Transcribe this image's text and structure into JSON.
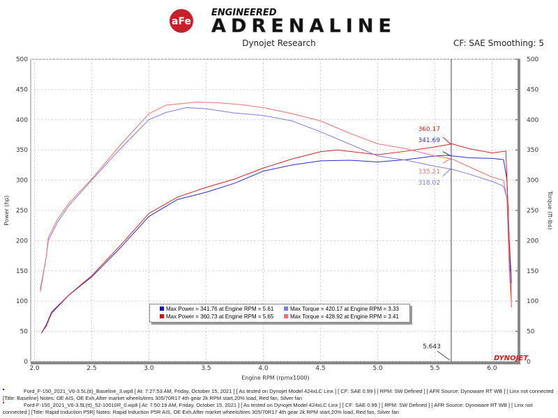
{
  "header": {
    "logo_text": "aFe POWER",
    "logo_line1": "ENGINEERED",
    "logo_line2": "ADRENALINE",
    "subtitle": "Dynojet Research",
    "settings": "CF: SAE Smoothing: 5"
  },
  "chart_data": {
    "type": "line",
    "xlabel": "Engine RPM (rpmx1000)",
    "ylabel": "Power (hp)",
    "y2label": "Torque (ft-lbs)",
    "xlim": [
      1.9,
      6.2
    ],
    "ylim": [
      0,
      500
    ],
    "y2lim": [
      0,
      500
    ],
    "xticks": [
      "2.0",
      "2.5",
      "3.0",
      "3.5",
      "4.0",
      "4.5",
      "5.0",
      "5.5",
      "6.0"
    ],
    "yticks": [
      "0",
      "50",
      "100",
      "150",
      "200",
      "250",
      "300",
      "350",
      "400",
      "450",
      "500"
    ],
    "grid": true,
    "colors": {
      "baseline_power": "#2b2bd0",
      "p5r_power": "#d42020",
      "baseline_torque": "#7b7bea",
      "p5r_torque": "#ee7070"
    },
    "series": [
      {
        "key": "baseline_power",
        "x": [
          2.06,
          2.1,
          2.15,
          2.3,
          2.5,
          2.75,
          3.0,
          3.25,
          3.5,
          3.75,
          4.0,
          4.25,
          4.5,
          4.75,
          5.0,
          5.25,
          5.5,
          5.61,
          5.8,
          6.0,
          6.1,
          6.13,
          6.15,
          6.17
        ],
        "y": [
          47,
          60,
          82,
          110,
          140,
          188,
          240,
          268,
          280,
          295,
          315,
          325,
          332,
          333,
          330,
          334,
          340,
          341,
          337,
          336,
          334,
          300,
          200,
          130
        ]
      },
      {
        "key": "p5r_power",
        "x": [
          2.06,
          2.1,
          2.15,
          2.3,
          2.5,
          2.75,
          3.0,
          3.25,
          3.5,
          3.75,
          4.0,
          4.25,
          4.5,
          4.65,
          5.0,
          5.25,
          5.5,
          5.65,
          5.8,
          6.0,
          6.12,
          6.15,
          6.17
        ],
        "y": [
          47,
          58,
          80,
          110,
          142,
          192,
          245,
          272,
          288,
          302,
          320,
          335,
          347,
          350,
          342,
          348,
          355,
          360,
          352,
          345,
          348,
          200,
          90
        ]
      },
      {
        "key": "baseline_torque",
        "x": [
          2.05,
          2.1,
          2.12,
          2.2,
          2.3,
          2.5,
          2.75,
          3.0,
          3.15,
          3.33,
          3.5,
          3.75,
          4.0,
          4.25,
          4.5,
          4.75,
          5.0,
          5.25,
          5.5,
          5.65,
          5.8,
          6.0,
          6.1,
          6.13,
          6.15,
          6.17
        ],
        "y": [
          120,
          170,
          200,
          230,
          258,
          300,
          352,
          400,
          412,
          420,
          418,
          411,
          407,
          398,
          380,
          360,
          340,
          333,
          323,
          318,
          310,
          298,
          290,
          270,
          160,
          130
        ]
      },
      {
        "key": "p5r_torque",
        "x": [
          2.05,
          2.1,
          2.12,
          2.2,
          2.3,
          2.5,
          2.75,
          3.0,
          3.15,
          3.41,
          3.6,
          3.8,
          4.0,
          4.25,
          4.5,
          4.75,
          5.0,
          5.25,
          5.5,
          5.65,
          5.8,
          6.0,
          6.1,
          6.13,
          6.15,
          6.17
        ],
        "y": [
          115,
          170,
          205,
          235,
          262,
          302,
          358,
          410,
          424,
          429,
          428,
          425,
          420,
          410,
          398,
          378,
          360,
          352,
          340,
          335,
          322,
          305,
          300,
          270,
          150,
          90
        ]
      }
    ],
    "cursor": {
      "x": 5.643,
      "label": "5.643",
      "readouts": [
        {
          "key": "p5r_power",
          "value": "360.17"
        },
        {
          "key": "baseline_power",
          "value": "341.69"
        },
        {
          "key": "p5r_torque",
          "value": "335.21"
        },
        {
          "key": "baseline_torque",
          "value": "318.02"
        }
      ]
    },
    "legend": [
      {
        "key": "baseline_power",
        "text": "Max Power = 341.76 at Engine RPM = 5.61"
      },
      {
        "key": "baseline_torque",
        "text": "Max Torque = 420.17 at Engine RPM = 3.33"
      },
      {
        "key": "p5r_power",
        "text": "Max Power = 360.73 at Engine RPM = 5.65"
      },
      {
        "key": "p5r_torque",
        "text": "Max Torque = 428.92 at Engine RPM = 3.41"
      }
    ],
    "watermark": "DYNOJET"
  },
  "footer": {
    "line1": "Ford_F-150_2021_V6-3.5L(tt)_Baseline_3.wp8 [ At: 7:27:53 AM, Friday, October 15, 2021 ] [ As tested on Dynojet Model 424xLC Linx ] [ CF: SAE 0.99 ] [ RPM: SW Defined ] [ AFR Source: Dynoware RT WB ] [ Linx not connected",
    "line2": "[Title: Baseline]  Notes: OE AIS, OE Exh,After market wheels/tires 305/70R17 4th gear 2k RPM start,20% load, Red fan, Silver fan",
    "line3": "Ford-F-150_2021_V6-3.5L(tt)_52-10010R_0.wp8 [ At: 7:50:19 AM, Friday, October 15, 2021 ] [ As tested on Dynojet Model 424xLC Linx ] [ CF: SAE 0.99 ] [ RPM: SW Defined ] [ AFR Source: Dynoware RT WB ] [ Linx not",
    "line4": "connected ] [Title: Rapid Induction P5R]  Notes: Rapid Induction P5R AIS, OE Exh,After market wheels/tires 305/70R17 4th gear 2k RPM start,20% load, Red fan, Silver fan"
  }
}
